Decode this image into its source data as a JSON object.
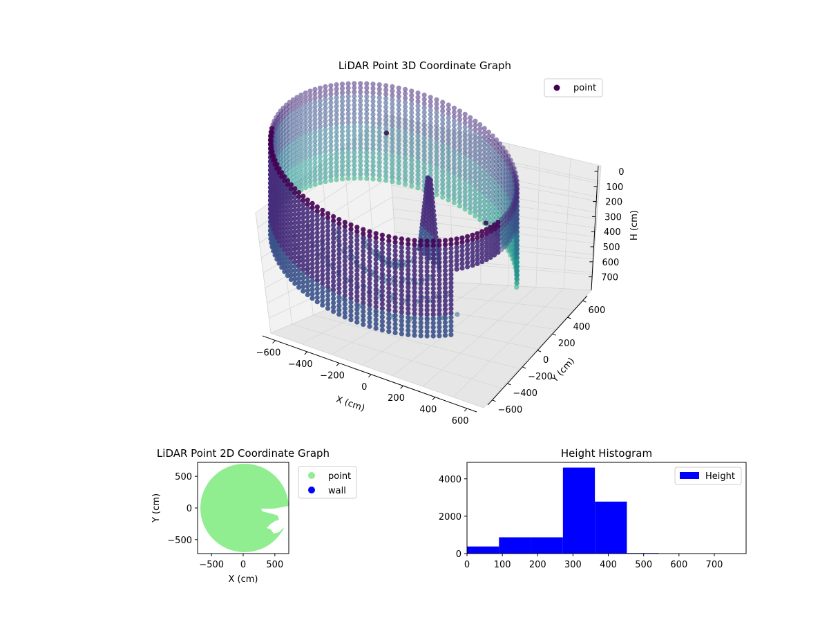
{
  "chart_data": [
    {
      "type": "scatter",
      "projection": "3d",
      "title": "LiDAR Point 3D Coordinate Graph",
      "xlabel": "X (cm)",
      "ylabel": "Y (cm)",
      "zlabel": "H (cm)",
      "xticks": [
        "−600",
        "−400",
        "−200",
        "0",
        "200",
        "400",
        "600"
      ],
      "yticks": [
        "−600",
        "−400",
        "−200",
        "0",
        "200",
        "400",
        "600"
      ],
      "zticks": [
        "0",
        "100",
        "200",
        "300",
        "400",
        "500",
        "600",
        "700"
      ],
      "xlim": [
        -650,
        650
      ],
      "ylim": [
        -650,
        650
      ],
      "zlim": [
        750,
        0
      ],
      "z_inverted": true,
      "grid": true,
      "legend": {
        "position": "top-right",
        "entries": [
          "point"
        ]
      },
      "colormap": "viridis",
      "series": [
        {
          "name": "point",
          "color": "#440154",
          "description_points": {
            "ring_radius": 620,
            "ring_top_h": 30,
            "ring_bottom_h": 560,
            "gap_angle_deg": [
              -40,
              15
            ],
            "structure_center": [
              160,
              80
            ],
            "outliers": [
              [
                -150,
                300,
                100
              ],
              [
                420,
                200,
                300
              ]
            ]
          }
        }
      ]
    },
    {
      "type": "scatter",
      "title": "LiDAR Point 2D Coordinate Graph",
      "xlabel": "X (cm)",
      "ylabel": "Y (cm)",
      "xticks": [
        "−500",
        "0",
        "500"
      ],
      "yticks": [
        "500",
        "0",
        "−500"
      ],
      "xlim": [
        -720,
        720
      ],
      "ylim": [
        -720,
        720
      ],
      "legend": {
        "position": "outside-right",
        "entries": [
          "point",
          "wall"
        ]
      },
      "series": [
        {
          "name": "point",
          "color": "#90ee90",
          "disk_radius": 720
        },
        {
          "name": "wall",
          "color": "#0000ff"
        }
      ]
    },
    {
      "type": "bar",
      "title": "Height Histogram",
      "xlabel": "",
      "ylabel": "",
      "xticks": [
        "0",
        "100",
        "200",
        "300",
        "400",
        "500",
        "600",
        "700"
      ],
      "yticks": [
        "0",
        "2000",
        "4000"
      ],
      "xlim": [
        0,
        790
      ],
      "ylim": [
        0,
        4880
      ],
      "bin_edges": [
        0,
        90.5,
        181,
        271.5,
        362,
        452.5,
        543,
        633.5,
        724
      ],
      "values": [
        380,
        870,
        870,
        4600,
        2780,
        30,
        0,
        10
      ],
      "legend": {
        "position": "top-right",
        "entries": [
          "Height"
        ]
      },
      "series": [
        {
          "name": "Height",
          "color": "#0000ff"
        }
      ]
    }
  ]
}
